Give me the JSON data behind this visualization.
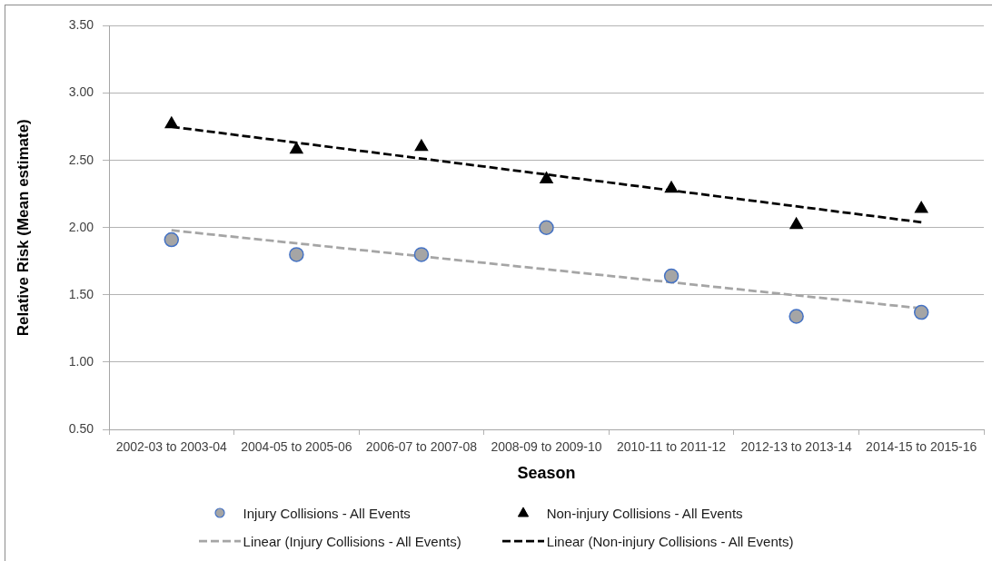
{
  "chart_data": {
    "type": "scatter",
    "xlabel": "Season",
    "ylabel": "Relative Risk (Mean estimate)",
    "categories": [
      "2002-03 to 2003-04",
      "2004-05 to 2005-06",
      "2006-07 to 2007-08",
      "2008-09 to 2009-10",
      "2010-11 to 2011-12",
      "2012-13 to 2013-14",
      "2014-15 to 2015-16"
    ],
    "series": [
      {
        "name": "Injury Collisions - All Events",
        "color": "#a5a5a5",
        "marker": "circle",
        "values": [
          1.91,
          1.8,
          1.8,
          2.0,
          1.64,
          1.34,
          1.37
        ]
      },
      {
        "name": "Non-injury Collisions - All Events",
        "color": "#000000",
        "marker": "triangle",
        "values": [
          2.77,
          2.58,
          2.6,
          2.36,
          2.29,
          2.02,
          2.14
        ]
      },
      {
        "name": "Linear (Injury Collisions - All Events)",
        "type": "line",
        "color": "#a5a5a5",
        "line_style": "dashed",
        "marker": "none",
        "x": [
          "2002-03 to 2003-04",
          "2014-15 to 2015-16"
        ],
        "values": [
          1.98,
          1.4
        ]
      },
      {
        "name": "Linear (Non-injury Collisions - All Events)",
        "type": "line",
        "color": "#000000",
        "line_style": "dashed",
        "marker": "none",
        "x": [
          "2002-03 to 2003-04",
          "2014-15 to 2015-16"
        ],
        "values": [
          2.75,
          2.04
        ]
      }
    ],
    "ylim": [
      0.5,
      3.5
    ],
    "yticks": [
      {
        "value": 0.5,
        "label": "0.50"
      },
      {
        "value": 1,
        "label": "1.00"
      },
      {
        "value": 1.5,
        "label": "1.50"
      },
      {
        "value": 2,
        "label": "2.00"
      },
      {
        "value": 2.5,
        "label": "2.50"
      },
      {
        "value": 3,
        "label": "3.00"
      },
      {
        "value": 3.5,
        "label": "3.50"
      }
    ],
    "grid": "y",
    "legend": "bottom"
  }
}
